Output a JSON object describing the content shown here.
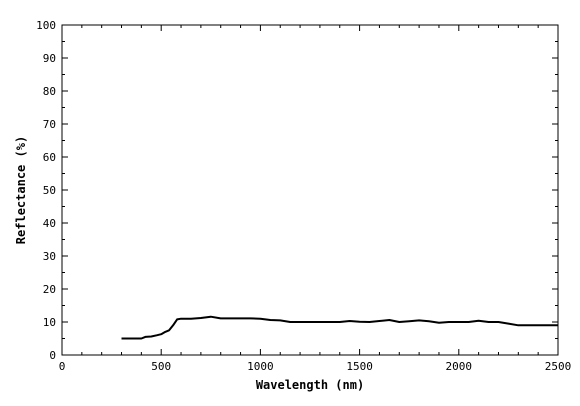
{
  "chart_data": {
    "type": "line",
    "title": "",
    "xlabel": "Wavelength (nm)",
    "ylabel": "Reflectance (%)",
    "xlim": [
      0,
      2500
    ],
    "ylim": [
      0,
      100
    ],
    "x_ticks": [
      0,
      500,
      1000,
      1500,
      2000,
      2500
    ],
    "y_ticks": [
      0,
      10,
      20,
      30,
      40,
      50,
      60,
      70,
      80,
      90,
      100
    ],
    "grid": false,
    "legend": "none",
    "series": [
      {
        "color": "#000000",
        "x": [
          300,
          400,
          420,
          450,
          480,
          500,
          520,
          540,
          560,
          580,
          600,
          650,
          700,
          750,
          800,
          850,
          900,
          950,
          1000,
          1050,
          1100,
          1150,
          1200,
          1250,
          1300,
          1350,
          1400,
          1450,
          1500,
          1550,
          1600,
          1650,
          1700,
          1750,
          1800,
          1850,
          1900,
          1950,
          2000,
          2050,
          2100,
          2150,
          2200,
          2250,
          2300,
          2350,
          2400,
          2450,
          2500
        ],
        "y": [
          5,
          5,
          5.5,
          5.6,
          6,
          6.3,
          7,
          7.5,
          9,
          10.8,
          11,
          11,
          11.2,
          11.6,
          11.1,
          11.1,
          11.1,
          11.1,
          11,
          10.6,
          10.5,
          10,
          10,
          10,
          10,
          10,
          10,
          10.3,
          10.1,
          10,
          10.3,
          10.6,
          10,
          10.2,
          10.5,
          10.2,
          9.8,
          10,
          10,
          10,
          10.4,
          10,
          10,
          9.5,
          9,
          9,
          9,
          9,
          9
        ]
      }
    ]
  }
}
